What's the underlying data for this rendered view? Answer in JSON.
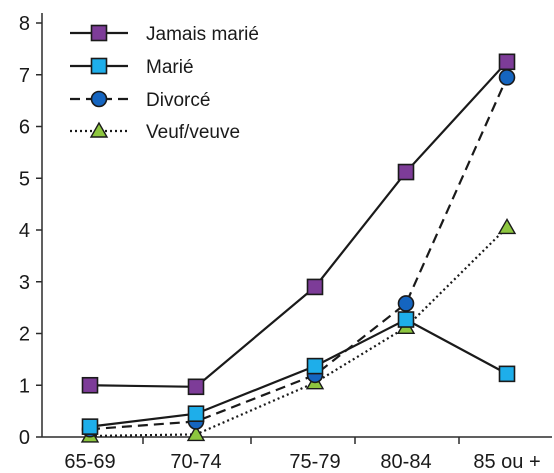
{
  "chart_data": {
    "type": "line",
    "title": "",
    "xlabel": "",
    "ylabel": "",
    "categories": [
      "65-69",
      "70-74",
      "75-79",
      "80-84",
      "85 ou +"
    ],
    "ylim": [
      0,
      8
    ],
    "yticks": [
      "0",
      "1",
      "2",
      "3",
      "4",
      "5",
      "6",
      "7",
      "8"
    ],
    "grid": false,
    "legend_position": "top-left",
    "series": [
      {
        "name": "Jamais marié",
        "values": [
          1.0,
          0.97,
          2.9,
          5.12,
          7.25
        ],
        "color": "#7d3c98",
        "marker": "square",
        "dash": "solid"
      },
      {
        "name": "Marié",
        "values": [
          0.2,
          0.45,
          1.37,
          2.27,
          1.22
        ],
        "color": "#1eaeea",
        "marker": "square",
        "dash": "solid"
      },
      {
        "name": "Divorcé",
        "values": [
          0.15,
          0.3,
          1.2,
          2.58,
          6.95
        ],
        "color": "#1565c0",
        "marker": "circle",
        "dash": "dashed"
      },
      {
        "name": "Veuf/veuve",
        "values": [
          0.02,
          0.05,
          1.05,
          2.12,
          4.05
        ],
        "color": "#8dc63f",
        "marker": "triangle",
        "dash": "dotted"
      }
    ]
  }
}
